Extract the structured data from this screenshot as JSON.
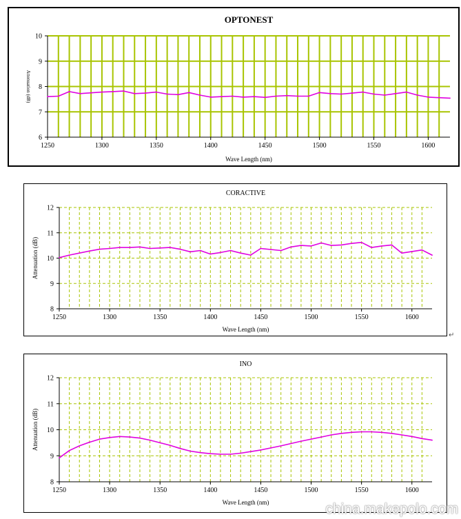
{
  "chart_data": [
    {
      "type": "line",
      "title": "OPTONEST",
      "xlabel": "Wave Length (nm)",
      "ylabel": "Attenuation (dB)",
      "xlim": [
        1250,
        1620
      ],
      "ylim": [
        6,
        10
      ],
      "xticks": [
        1250,
        1300,
        1350,
        1400,
        1450,
        1500,
        1550,
        1600
      ],
      "yticks": [
        6,
        7,
        8,
        9,
        10
      ],
      "grid": "on",
      "grid_color": "#a8c400",
      "line_color": "#e000e0",
      "series": [
        {
          "x": [
            1250,
            1260,
            1270,
            1280,
            1290,
            1300,
            1310,
            1320,
            1330,
            1340,
            1350,
            1360,
            1370,
            1380,
            1390,
            1400,
            1410,
            1420,
            1430,
            1440,
            1450,
            1460,
            1470,
            1480,
            1490,
            1500,
            1510,
            1520,
            1530,
            1540,
            1550,
            1560,
            1570,
            1580,
            1590,
            1600,
            1610,
            1620
          ],
          "values": [
            7.6,
            7.62,
            7.8,
            7.72,
            7.75,
            7.78,
            7.8,
            7.82,
            7.72,
            7.74,
            7.78,
            7.7,
            7.68,
            7.76,
            7.66,
            7.58,
            7.6,
            7.62,
            7.58,
            7.6,
            7.57,
            7.62,
            7.64,
            7.62,
            7.62,
            7.76,
            7.72,
            7.7,
            7.74,
            7.78,
            7.7,
            7.66,
            7.72,
            7.78,
            7.66,
            7.58,
            7.56,
            7.54
          ]
        }
      ]
    },
    {
      "type": "line",
      "title": "CORACTIVE",
      "xlabel": "Wave Length (nm)",
      "ylabel": "Attenuation (dB)",
      "xlim": [
        1250,
        1620
      ],
      "ylim": [
        8,
        12
      ],
      "xticks": [
        1250,
        1300,
        1350,
        1400,
        1450,
        1500,
        1550,
        1600
      ],
      "yticks": [
        8,
        9,
        10,
        11,
        12
      ],
      "grid": "on",
      "grid_color": "#a8c400",
      "line_color": "#e000e0",
      "series": [
        {
          "x": [
            1250,
            1260,
            1270,
            1280,
            1290,
            1300,
            1310,
            1320,
            1330,
            1340,
            1350,
            1360,
            1370,
            1380,
            1390,
            1400,
            1410,
            1420,
            1430,
            1440,
            1450,
            1460,
            1470,
            1480,
            1490,
            1500,
            1510,
            1520,
            1530,
            1540,
            1550,
            1560,
            1570,
            1580,
            1590,
            1600,
            1610,
            1620
          ],
          "values": [
            10.02,
            10.12,
            10.2,
            10.28,
            10.35,
            10.38,
            10.42,
            10.42,
            10.44,
            10.38,
            10.4,
            10.42,
            10.35,
            10.25,
            10.3,
            10.16,
            10.22,
            10.3,
            10.2,
            10.12,
            10.38,
            10.34,
            10.3,
            10.44,
            10.5,
            10.48,
            10.6,
            10.5,
            10.52,
            10.58,
            10.62,
            10.42,
            10.48,
            10.52,
            10.2,
            10.26,
            10.32,
            10.12
          ]
        }
      ]
    },
    {
      "type": "line",
      "title": "INO",
      "xlabel": "Wave Length (nm)",
      "ylabel": "Attenuation (dB)",
      "xlim": [
        1250,
        1620
      ],
      "ylim": [
        8,
        12
      ],
      "xticks": [
        1250,
        1300,
        1350,
        1400,
        1450,
        1500,
        1550,
        1600
      ],
      "yticks": [
        8,
        9,
        10,
        11,
        12
      ],
      "grid": "on",
      "grid_color": "#a8c400",
      "line_color": "#e000e0",
      "series": [
        {
          "x": [
            1250,
            1260,
            1270,
            1280,
            1290,
            1300,
            1310,
            1320,
            1330,
            1340,
            1350,
            1360,
            1370,
            1380,
            1390,
            1400,
            1410,
            1420,
            1430,
            1440,
            1450,
            1460,
            1470,
            1480,
            1490,
            1500,
            1510,
            1520,
            1530,
            1540,
            1550,
            1560,
            1570,
            1580,
            1590,
            1600,
            1610,
            1620
          ],
          "values": [
            8.92,
            9.2,
            9.38,
            9.52,
            9.64,
            9.7,
            9.74,
            9.72,
            9.68,
            9.6,
            9.5,
            9.4,
            9.28,
            9.18,
            9.12,
            9.08,
            9.06,
            9.06,
            9.1,
            9.16,
            9.22,
            9.3,
            9.38,
            9.47,
            9.56,
            9.64,
            9.72,
            9.8,
            9.86,
            9.9,
            9.92,
            9.92,
            9.9,
            9.86,
            9.8,
            9.74,
            9.66,
            9.6
          ]
        }
      ]
    }
  ],
  "page": {
    "return_mark": "↵",
    "watermark": "china.makepolo.com"
  }
}
